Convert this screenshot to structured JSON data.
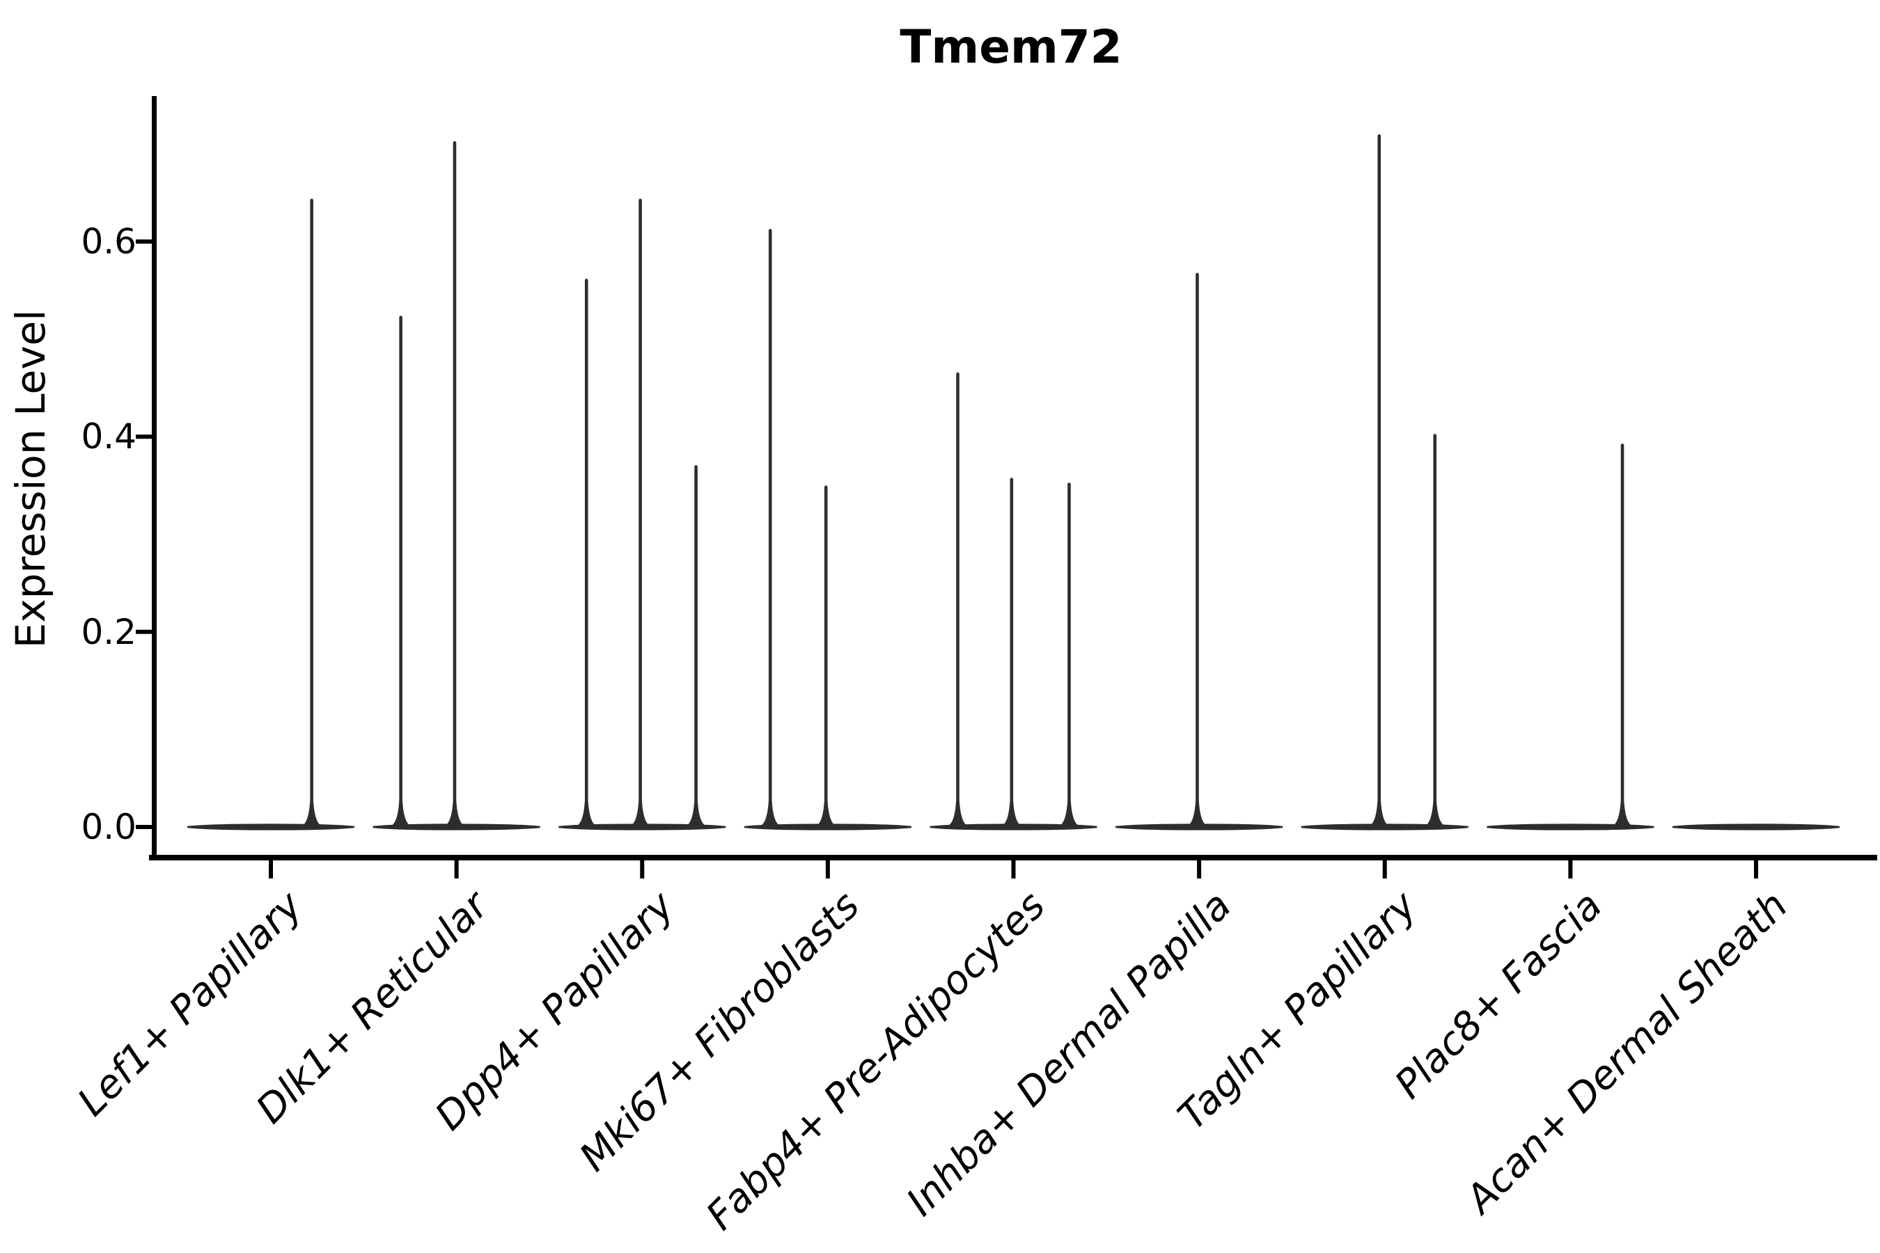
{
  "figure": {
    "title": "Tmem72",
    "ylabel": "Expression Level"
  },
  "chart_data": {
    "type": "violin",
    "title": "Tmem72",
    "xlabel": "",
    "ylabel": "Expression Level",
    "grid": false,
    "legend": "none",
    "ytick_labels": [
      "0.0",
      "0.2",
      "0.4",
      "0.6"
    ],
    "ytick_values": [
      0.0,
      0.2,
      0.4,
      0.6
    ],
    "ylim": [
      -0.031,
      0.748
    ],
    "categories": [
      "Lef1+ Papillary",
      "Dlk1+ Reticular",
      "Dpp4+ Papillary",
      "Mki67+ Fibroblasts",
      "Fabp4+ Pre-Adipocytes",
      "Inhba+ Dermal Papilla",
      "Tagln+ Papillary",
      "Plac8+ Fascia",
      "Acan+ Dermal Sheath"
    ],
    "violin_halfwidth": 0.45,
    "baseline_value": 0.0,
    "line_color": "#2d2d2d",
    "axis_color": "#000000",
    "series": [
      {
        "category": "Lef1+ Papillary",
        "spikes": [
          {
            "offset": 0.22,
            "value": 0.644
          }
        ]
      },
      {
        "category": "Dlk1+ Reticular",
        "spikes": [
          {
            "offset": -0.3,
            "value": 0.524
          },
          {
            "offset": -0.01,
            "value": 0.703
          }
        ]
      },
      {
        "category": "Dpp4+ Papillary",
        "spikes": [
          {
            "offset": -0.3,
            "value": 0.562
          },
          {
            "offset": -0.01,
            "value": 0.644
          },
          {
            "offset": 0.29,
            "value": 0.371
          }
        ]
      },
      {
        "category": "Mki67+ Fibroblasts",
        "spikes": [
          {
            "offset": -0.31,
            "value": 0.613
          },
          {
            "offset": -0.01,
            "value": 0.35
          }
        ]
      },
      {
        "category": "Fabp4+ Pre-Adipocytes",
        "spikes": [
          {
            "offset": -0.3,
            "value": 0.466
          },
          {
            "offset": -0.01,
            "value": 0.358
          },
          {
            "offset": 0.3,
            "value": 0.353
          }
        ]
      },
      {
        "category": "Inhba+ Dermal Papilla",
        "spikes": [
          {
            "offset": -0.01,
            "value": 0.568
          }
        ]
      },
      {
        "category": "Tagln+ Papillary",
        "spikes": [
          {
            "offset": -0.03,
            "value": 0.71
          },
          {
            "offset": 0.27,
            "value": 0.403
          }
        ]
      },
      {
        "category": "Plac8+ Fascia",
        "spikes": [
          {
            "offset": 0.28,
            "value": 0.393
          }
        ]
      },
      {
        "category": "Acan+ Dermal Sheath",
        "spikes": []
      }
    ]
  }
}
